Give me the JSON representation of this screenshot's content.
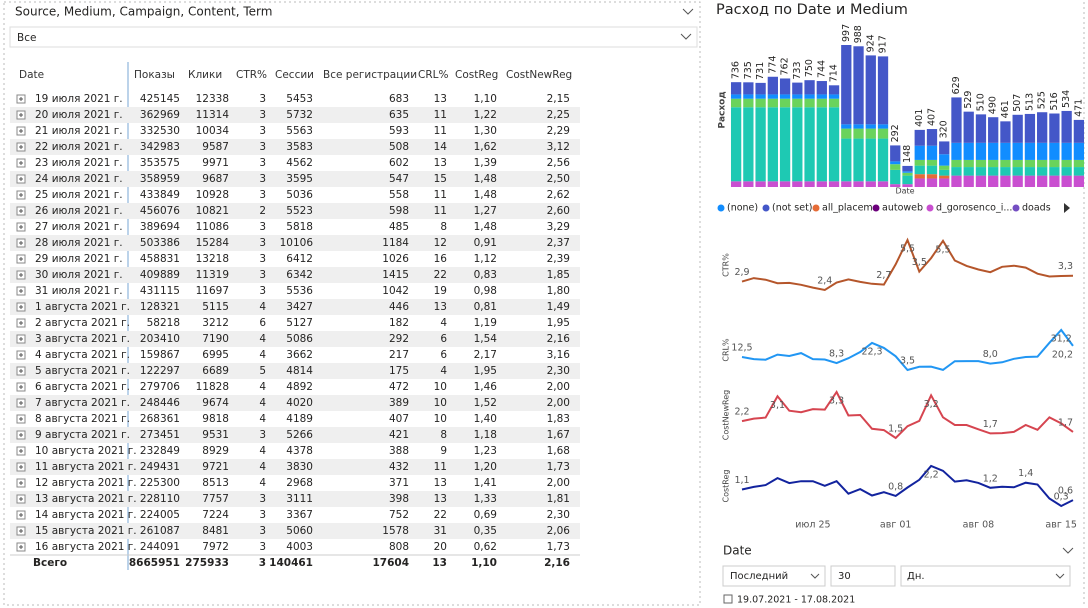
{
  "slicer": {
    "title": "Source, Medium, Campaign, Content, Term",
    "value": "Все"
  },
  "table": {
    "columns": [
      "Date",
      "Показы",
      "Клики",
      "CTR%",
      "Сессии",
      "Все регистрации",
      "CRL%",
      "CostReg",
      "CostNewReg"
    ],
    "rows": [
      [
        "19 июля 2021 г.",
        "425145",
        "12338",
        "3",
        "5453",
        "683",
        "13",
        "1,10",
        "2,15"
      ],
      [
        "20 июля 2021 г.",
        "362969",
        "11314",
        "3",
        "5732",
        "635",
        "11",
        "1,22",
        "2,25"
      ],
      [
        "21 июля 2021 г.",
        "332530",
        "10034",
        "3",
        "5563",
        "593",
        "11",
        "1,30",
        "2,29"
      ],
      [
        "22 июля 2021 г.",
        "342983",
        "9587",
        "3",
        "3583",
        "508",
        "14",
        "1,62",
        "3,12"
      ],
      [
        "23 июля 2021 г.",
        "353575",
        "9971",
        "3",
        "4562",
        "602",
        "13",
        "1,39",
        "2,56"
      ],
      [
        "24 июля 2021 г.",
        "358959",
        "9687",
        "3",
        "3595",
        "547",
        "15",
        "1,48",
        "2,50"
      ],
      [
        "25 июля 2021 г.",
        "433849",
        "10928",
        "3",
        "5036",
        "558",
        "11",
        "1,48",
        "2,62"
      ],
      [
        "26 июля 2021 г.",
        "456076",
        "10821",
        "2",
        "5523",
        "598",
        "11",
        "1,27",
        "2,60"
      ],
      [
        "27 июля 2021 г.",
        "389694",
        "11086",
        "3",
        "5818",
        "485",
        "8",
        "1,48",
        "3,29"
      ],
      [
        "28 июля 2021 г.",
        "503386",
        "15284",
        "3",
        "10106",
        "1184",
        "12",
        "0,91",
        "2,37"
      ],
      [
        "29 июля 2021 г.",
        "458831",
        "13218",
        "3",
        "6412",
        "1026",
        "16",
        "1,12",
        "2,39"
      ],
      [
        "30 июля 2021 г.",
        "409889",
        "11319",
        "3",
        "6342",
        "1415",
        "22",
        "0,83",
        "1,85"
      ],
      [
        "31 июля 2021 г.",
        "431115",
        "11697",
        "3",
        "5536",
        "1042",
        "19",
        "0,98",
        "1,80"
      ],
      [
        "1 августа 2021 г.",
        "128321",
        "5115",
        "4",
        "3427",
        "446",
        "13",
        "0,81",
        "1,49"
      ],
      [
        "2 августа 2021 г.",
        "58218",
        "3212",
        "6",
        "5127",
        "182",
        "4",
        "1,19",
        "1,95"
      ],
      [
        "3 августа 2021 г.",
        "203410",
        "7190",
        "4",
        "5086",
        "292",
        "6",
        "1,54",
        "2,16"
      ],
      [
        "4 августа 2021 г.",
        "159867",
        "6995",
        "4",
        "3662",
        "217",
        "6",
        "2,17",
        "3,16"
      ],
      [
        "5 августа 2021 г.",
        "122297",
        "6689",
        "5",
        "4814",
        "175",
        "4",
        "1,95",
        "2,30"
      ],
      [
        "6 августа 2021 г.",
        "279706",
        "11828",
        "4",
        "4892",
        "472",
        "10",
        "1,46",
        "2,00"
      ],
      [
        "7 августа 2021 г.",
        "248446",
        "9674",
        "4",
        "4020",
        "389",
        "10",
        "1,52",
        "2,00"
      ],
      [
        "8 августа 2021 г.",
        "268361",
        "9818",
        "4",
        "4189",
        "407",
        "10",
        "1,40",
        "1,83"
      ],
      [
        "9 августа 2021 г.",
        "273451",
        "9531",
        "3",
        "5266",
        "421",
        "8",
        "1,18",
        "1,67"
      ],
      [
        "10 августа 2021 г.",
        "232849",
        "8929",
        "4",
        "4378",
        "388",
        "9",
        "1,23",
        "1,68"
      ],
      [
        "11 августа 2021 г.",
        "249431",
        "9721",
        "4",
        "3830",
        "432",
        "11",
        "1,20",
        "1,73"
      ],
      [
        "12 августа 2021 г.",
        "225300",
        "8513",
        "4",
        "2968",
        "371",
        "13",
        "1,41",
        "2,00"
      ],
      [
        "13 августа 2021 г.",
        "228110",
        "7757",
        "3",
        "3111",
        "398",
        "13",
        "1,33",
        "1,81"
      ],
      [
        "14 августа 2021 г.",
        "224005",
        "7224",
        "3",
        "3367",
        "752",
        "22",
        "0,69",
        "2,30"
      ],
      [
        "15 августа 2021 г.",
        "261087",
        "8481",
        "3",
        "5060",
        "1578",
        "31",
        "0,35",
        "2,06"
      ],
      [
        "16 августа 2021 г.",
        "244091",
        "7972",
        "3",
        "4003",
        "808",
        "20",
        "0,62",
        "1,73"
      ]
    ],
    "total": [
      "Всего",
      "8665951",
      "275933",
      "3",
      "140461",
      "17604",
      "13",
      "1,10",
      "2,16"
    ]
  },
  "chart_data": [
    {
      "type": "stacked_bar",
      "title": "Расход по Date и Medium",
      "x_label": "Date",
      "y_label": "Расход",
      "series": [
        {
          "name": "(none)",
          "color": "#118dff",
          "values": [
            30,
            30,
            30,
            30,
            30,
            30,
            30,
            30,
            30,
            30,
            30,
            30,
            30,
            20,
            10,
            100,
            100,
            80,
            120,
            120,
            120,
            120,
            120,
            120,
            120,
            120,
            120,
            120,
            120
          ]
        },
        {
          "name": "(not set)",
          "color": "#4457c8",
          "values": [
            86,
            85,
            81,
            124,
            112,
            83,
            100,
            94,
            64,
            557,
            548,
            484,
            477,
            112,
            38,
            111,
            117,
            90,
            319,
            219,
            200,
            180,
            151,
            197,
            203,
            215,
            206,
            224,
            161
          ]
        },
        {
          "name": "all_placem",
          "color": "#e66c37",
          "values": [
            0,
            0,
            0,
            0,
            0,
            0,
            0,
            0,
            0,
            0,
            0,
            0,
            0,
            0,
            0,
            30,
            30,
            20,
            0,
            0,
            0,
            0,
            0,
            0,
            0,
            0,
            0,
            0,
            0
          ]
        },
        {
          "name": "autoweb",
          "color": "#6b007b",
          "values": [
            0,
            0,
            0,
            0,
            0,
            0,
            0,
            0,
            0,
            0,
            0,
            0,
            0,
            0,
            0,
            0,
            0,
            0,
            0,
            0,
            0,
            0,
            0,
            0,
            0,
            0,
            0,
            0,
            0
          ]
        },
        {
          "name": "d_gorosenco_i...",
          "color": "#c94fd0",
          "values": [
            40,
            40,
            40,
            40,
            40,
            40,
            40,
            40,
            40,
            40,
            40,
            40,
            40,
            20,
            20,
            60,
            60,
            60,
            80,
            80,
            80,
            80,
            80,
            80,
            80,
            80,
            80,
            80,
            80
          ]
        },
        {
          "name": "doads",
          "color": "#744ec2",
          "values": [
            0,
            0,
            0,
            0,
            0,
            0,
            0,
            0,
            0,
            0,
            0,
            0,
            0,
            0,
            0,
            0,
            0,
            0,
            0,
            0,
            0,
            0,
            0,
            0,
            0,
            0,
            0,
            0,
            0
          ]
        },
        {
          "color": "#1ec9b3",
          "values": [
            520,
            520,
            520,
            520,
            520,
            520,
            520,
            520,
            520,
            300,
            300,
            300,
            300,
            100,
            60,
            60,
            60,
            40,
            60,
            60,
            60,
            60,
            60,
            60,
            60,
            60,
            60,
            60,
            60
          ]
        },
        {
          "color": "#6ad35c",
          "values": [
            60,
            60,
            60,
            60,
            60,
            60,
            60,
            60,
            60,
            70,
            70,
            70,
            70,
            40,
            20,
            40,
            40,
            30,
            50,
            50,
            50,
            50,
            50,
            50,
            50,
            50,
            50,
            50,
            50
          ]
        }
      ],
      "value_labels": [
        "736",
        "735",
        "731",
        "774",
        "762",
        "733",
        "750",
        "744",
        "714",
        "997",
        "988",
        "924",
        "917",
        "292",
        "148",
        "401",
        "407",
        "320",
        "629",
        "529",
        "510",
        "490",
        "461",
        "507",
        "513",
        "525",
        "516",
        "534",
        "471"
      ]
    },
    {
      "type": "line",
      "y_label": "CTR%",
      "color": "#b5562b",
      "values": [
        2.9,
        3.12,
        3.02,
        2.8,
        2.82,
        2.7,
        2.52,
        2.37,
        2.84,
        3.04,
        2.88,
        2.76,
        2.71,
        3.99,
        5.52,
        3.53,
        4.38,
        5.47,
        4.23,
        3.89,
        3.66,
        3.49,
        3.83,
        3.9,
        3.78,
        3.4,
        3.22,
        3.25,
        3.27
      ],
      "value_labels": [
        "2,9",
        null,
        null,
        null,
        null,
        null,
        null,
        "2,4",
        null,
        null,
        null,
        null,
        "2,7",
        null,
        "5,5",
        "3,5",
        null,
        "5,5",
        null,
        null,
        null,
        null,
        null,
        null,
        null,
        null,
        null,
        null,
        "3,3"
      ]
    },
    {
      "type": "line",
      "y_label": "CRL%",
      "color": "#2196f3",
      "values": [
        12.5,
        11.08,
        10.66,
        14.18,
        13.2,
        15.22,
        11.08,
        10.83,
        8.34,
        11.72,
        16.0,
        22.31,
        18.82,
        13.01,
        3.55,
        5.74,
        5.93,
        3.64,
        9.65,
        9.68,
        9.72,
        7.99,
        8.86,
        11.28,
        12.5,
        12.79,
        22.33,
        31.19,
        20.18
      ],
      "value_labels": [
        "12,5",
        null,
        null,
        null,
        null,
        null,
        null,
        null,
        "8,3",
        null,
        null,
        "22,3",
        null,
        null,
        "3,5",
        null,
        null,
        null,
        null,
        null,
        null,
        "8,0",
        null,
        null,
        null,
        null,
        null,
        "31,2",
        "20,2"
      ]
    },
    {
      "type": "line",
      "y_label": "CostNewReg",
      "color": "#d64550",
      "values": [
        2.15,
        2.25,
        2.29,
        3.12,
        2.56,
        2.5,
        2.62,
        2.6,
        3.29,
        2.37,
        2.39,
        1.85,
        1.8,
        1.49,
        1.95,
        2.16,
        3.16,
        2.3,
        2.0,
        2.0,
        1.83,
        1.67,
        1.68,
        1.73,
        2.0,
        1.81,
        2.3,
        2.06,
        1.73
      ],
      "value_labels": [
        "2,2",
        null,
        null,
        "3,1",
        null,
        null,
        null,
        null,
        "3,3",
        null,
        null,
        null,
        null,
        "1,5",
        null,
        null,
        "3,2",
        null,
        null,
        null,
        null,
        "1,7",
        null,
        null,
        null,
        null,
        null,
        null,
        "1,7"
      ]
    },
    {
      "type": "line",
      "y_label": "CostReg",
      "color": "#12239e",
      "values": [
        1.1,
        1.22,
        1.3,
        1.62,
        1.39,
        1.48,
        1.48,
        1.27,
        1.48,
        0.91,
        1.12,
        0.83,
        0.98,
        0.81,
        1.19,
        1.54,
        2.17,
        1.95,
        1.46,
        1.52,
        1.4,
        1.18,
        1.23,
        1.2,
        1.41,
        1.33,
        0.69,
        0.35,
        0.62
      ],
      "value_labels": [
        "1,1",
        null,
        null,
        null,
        null,
        null,
        null,
        null,
        null,
        null,
        null,
        null,
        null,
        "0,8",
        null,
        null,
        "2,2",
        null,
        null,
        null,
        null,
        "1,2",
        null,
        null,
        "1,4",
        null,
        null,
        "0,3",
        "0,6"
      ],
      "categories": [
        null,
        null,
        null,
        null,
        null,
        null,
        "июл 25",
        null,
        null,
        null,
        null,
        null,
        null,
        "авг 01",
        null,
        null,
        null,
        null,
        null,
        null,
        "авг 08",
        null,
        null,
        null,
        null,
        null,
        null,
        "авг 15",
        null
      ]
    }
  ],
  "date_slicer": {
    "title": "Date",
    "mode": "Последний",
    "count": "30",
    "unit": "Дн.",
    "range": "19.07.2021 - 17.08.2021"
  }
}
